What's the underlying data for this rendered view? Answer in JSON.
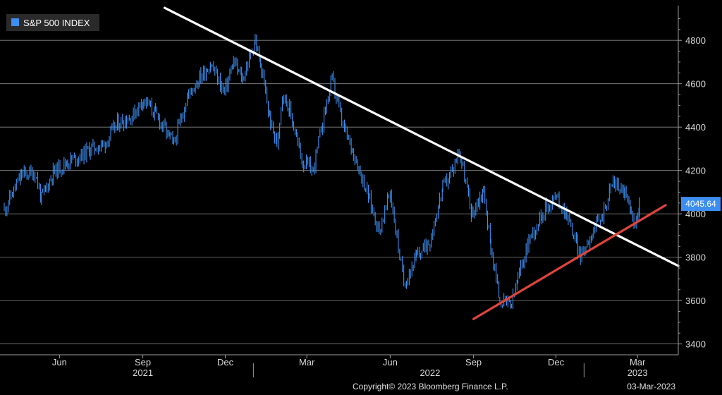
{
  "chart_data": {
    "type": "line",
    "legend": {
      "label": "S&P 500 INDEX",
      "color": "#3d8ef0",
      "placement": "top-left"
    },
    "y_axis": {
      "position": "right",
      "ylim": [
        3350,
        4960
      ],
      "ticks": [
        3400,
        3600,
        3800,
        4000,
        4200,
        4400,
        4600,
        4800
      ],
      "grid": true
    },
    "x_axis": {
      "xlim": [
        "2021-04-01",
        "2023-04-15"
      ],
      "month_ticks": [
        {
          "date": "2021-06-01",
          "label": "Jun"
        },
        {
          "date": "2021-09-01",
          "label": "Sep"
        },
        {
          "date": "2021-12-01",
          "label": "Dec"
        },
        {
          "date": "2022-03-01",
          "label": "Mar"
        },
        {
          "date": "2022-06-01",
          "label": "Jun"
        },
        {
          "date": "2022-09-01",
          "label": "Sep"
        },
        {
          "date": "2022-12-01",
          "label": "Dec"
        },
        {
          "date": "2023-03-01",
          "label": "Mar"
        }
      ],
      "years": [
        {
          "label": "2021",
          "date": "2021-09-01"
        },
        {
          "label": "2022",
          "date": "2022-07-15"
        },
        {
          "label": "2023",
          "date": "2023-03-01"
        }
      ],
      "year_separators": [
        "2022-01-01",
        "2023-01-01"
      ]
    },
    "series": [
      {
        "color": "#3d8ef0",
        "x": [
          "2021-04-01",
          "2021-04-20",
          "2021-05-05",
          "2021-05-12",
          "2021-05-25",
          "2021-06-10",
          "2021-06-25",
          "2021-07-05",
          "2021-07-20",
          "2021-08-05",
          "2021-08-20",
          "2021-09-02",
          "2021-09-15",
          "2021-10-01",
          "2021-10-05",
          "2021-10-20",
          "2021-11-01",
          "2021-11-15",
          "2021-11-30",
          "2021-12-10",
          "2021-12-20",
          "2022-01-03",
          "2022-01-10",
          "2022-01-20",
          "2022-01-27",
          "2022-02-02",
          "2022-02-10",
          "2022-02-24",
          "2022-03-08",
          "2022-03-20",
          "2022-03-29",
          "2022-04-10",
          "2022-04-20",
          "2022-05-05",
          "2022-05-20",
          "2022-06-01",
          "2022-06-16",
          "2022-06-30",
          "2022-07-15",
          "2022-07-29",
          "2022-08-10",
          "2022-08-16",
          "2022-08-30",
          "2022-09-12",
          "2022-09-20",
          "2022-09-30",
          "2022-10-13",
          "2022-10-20",
          "2022-11-01",
          "2022-11-10",
          "2022-11-15",
          "2022-11-30",
          "2022-12-13",
          "2022-12-28",
          "2023-01-10",
          "2023-01-20",
          "2023-02-02",
          "2023-02-15",
          "2023-02-22",
          "2023-03-01",
          "2023-03-03"
        ],
        "y": [
          4020,
          4180,
          4190,
          4070,
          4190,
          4240,
          4270,
          4300,
          4320,
          4420,
          4450,
          4530,
          4460,
          4350,
          4320,
          4540,
          4620,
          4690,
          4560,
          4700,
          4620,
          4800,
          4660,
          4420,
          4320,
          4560,
          4480,
          4240,
          4200,
          4460,
          4620,
          4400,
          4300,
          4120,
          3920,
          4100,
          3680,
          3800,
          3880,
          4120,
          4210,
          4300,
          4000,
          4110,
          3850,
          3600,
          3580,
          3700,
          3880,
          3950,
          4000,
          4080,
          4000,
          3800,
          3920,
          3980,
          4150,
          4100,
          3990,
          3960,
          4045.64
        ]
      }
    ],
    "last_value": {
      "label": "4045.64",
      "value": 4045.64
    },
    "annotations": [
      {
        "type": "trendline",
        "color": "#ffffff",
        "from": {
          "date": "2021-09-25",
          "value": 4950
        },
        "to": {
          "date": "2023-04-15",
          "value": 3760
        }
      },
      {
        "type": "trendline",
        "color": "#e0443a",
        "from": {
          "date": "2022-09-01",
          "value": 3515
        },
        "to": {
          "date": "2023-04-01",
          "value": 4040
        }
      }
    ]
  },
  "footer": {
    "copyright": "Copyright© 2023 Bloomberg Finance L.P.",
    "date": "03-Mar-2023"
  }
}
